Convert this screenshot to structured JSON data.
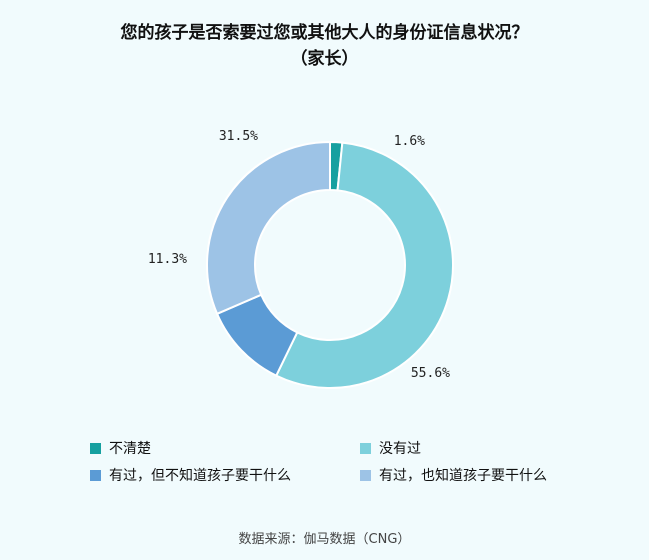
{
  "chart_data": {
    "type": "pie",
    "variant": "donut",
    "title_line1": "您的孩子是否索要过您或其他大人的身份证信息状况？",
    "title_line2": "（家长）",
    "slices": [
      {
        "label": "不清楚",
        "value": 1.6,
        "value_label": "1.6%",
        "color": "#16a0a0"
      },
      {
        "label": "没有过",
        "value": 55.6,
        "value_label": "55.6%",
        "color": "#7dd0dc"
      },
      {
        "label": "有过，但不知道孩子要干什么",
        "value": 11.3,
        "value_label": "11.3%",
        "color": "#5b9bd5"
      },
      {
        "label": "有过，也知道孩子要干什么",
        "value": 31.5,
        "value_label": "31.5%",
        "color": "#9dc3e6"
      }
    ],
    "legend_position": "bottom"
  },
  "source": "数据来源：伽马数据（CNG）"
}
